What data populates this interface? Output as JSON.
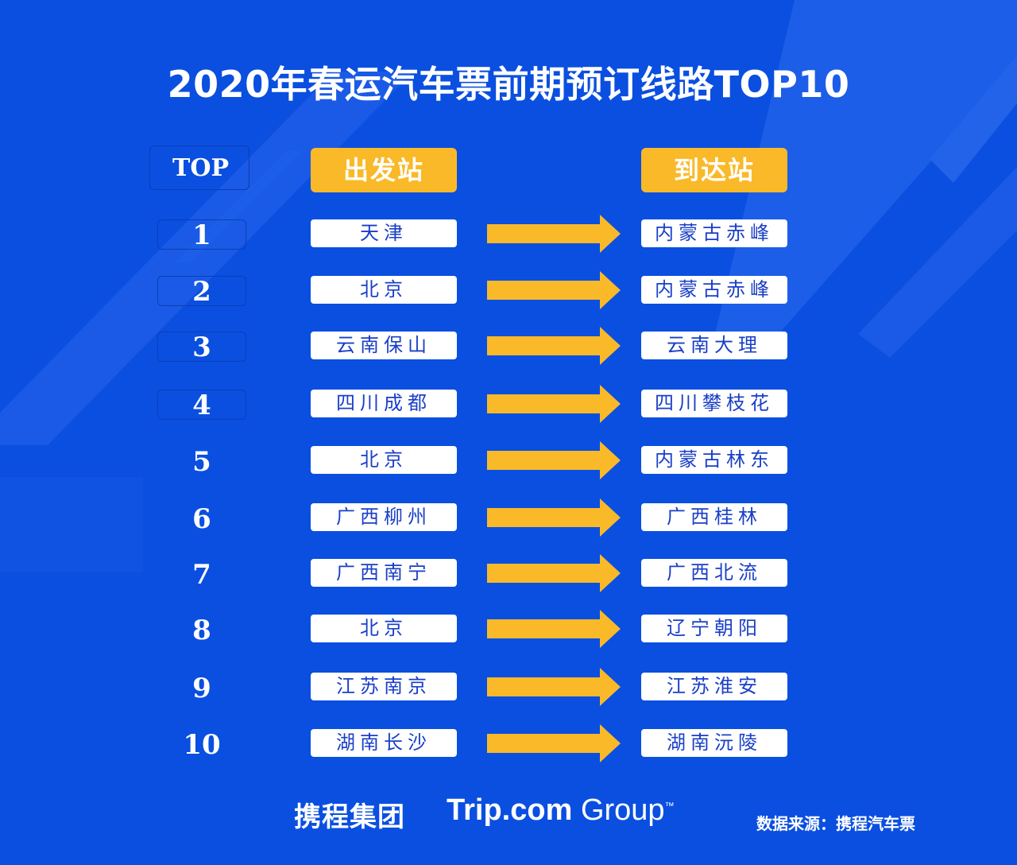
{
  "title": "2020年春运汽车票前期预订线路TOP10",
  "headers": {
    "rank": "TOP",
    "from": "出发站",
    "to": "到达站"
  },
  "routes": [
    {
      "rank": "1",
      "from": "天津",
      "to": "内蒙古赤峰"
    },
    {
      "rank": "2",
      "from": "北京",
      "to": "内蒙古赤峰"
    },
    {
      "rank": "3",
      "from": "云南保山",
      "to": "云南大理"
    },
    {
      "rank": "4",
      "from": "四川成都",
      "to": "四川攀枝花"
    },
    {
      "rank": "5",
      "from": "北京",
      "to": "内蒙古林东"
    },
    {
      "rank": "6",
      "from": "广西柳州",
      "to": "广西桂林"
    },
    {
      "rank": "7",
      "from": "广西南宁",
      "to": "广西北流"
    },
    {
      "rank": "8",
      "from": "北京",
      "to": "辽宁朝阳"
    },
    {
      "rank": "9",
      "from": "江苏南京",
      "to": "江苏淮安"
    },
    {
      "rank": "10",
      "from": "湖南长沙",
      "to": "湖南沅陵"
    }
  ],
  "footer": {
    "logo_cn": "携程集团",
    "logo_en_bold": "Trip.com",
    "logo_en_light": "Group",
    "logo_tm": "™",
    "source": "数据来源：携程汽车票"
  },
  "colors": {
    "background": "#0a4fe0",
    "accent": "#f9b928",
    "station_text": "#1a3fc8"
  },
  "icons": {
    "arrow": "right-arrow-icon"
  }
}
